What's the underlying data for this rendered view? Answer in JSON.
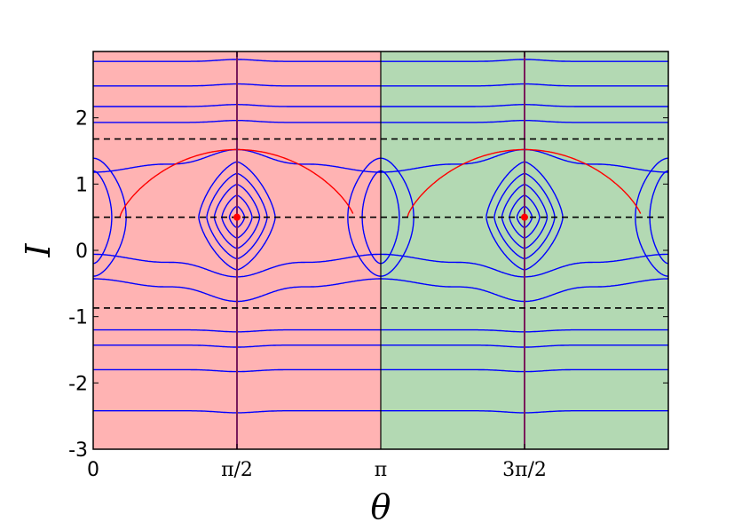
{
  "chart_data": {
    "type": "line",
    "title": "",
    "xlabel": "θ",
    "ylabel": "I",
    "xlim": [
      0,
      6.2832
    ],
    "ylim": [
      -3,
      3
    ],
    "x_ticks": [
      {
        "value": 0,
        "label": "0"
      },
      {
        "value": 1.5708,
        "label": "π/2"
      },
      {
        "value": 3.1416,
        "label": "π"
      },
      {
        "value": 4.7124,
        "label": "3π/2"
      }
    ],
    "y_ticks": [
      {
        "value": -3,
        "label": "-3"
      },
      {
        "value": -2,
        "label": "-2"
      },
      {
        "value": -1,
        "label": "-1"
      },
      {
        "value": 0,
        "label": "0"
      },
      {
        "value": 1,
        "label": "1"
      },
      {
        "value": 2,
        "label": "2"
      }
    ],
    "background_regions": [
      {
        "x_range": [
          0,
          3.1416
        ],
        "color": "#ffb3b3"
      },
      {
        "x_range": [
          3.1416,
          6.2832
        ],
        "color": "#b3d9b3"
      }
    ],
    "dashed_hlines": [
      1.68,
      0.5,
      -0.87
    ],
    "vertical_lines": [
      1.5708,
      4.7124
    ],
    "fixed_points": [
      {
        "theta": 1.5708,
        "I": 0.5
      },
      {
        "theta": 4.7124,
        "I": 0.5
      }
    ],
    "separatrix": {
      "I_center": 0.5,
      "I_top": 1.52,
      "I_bottom": -0.52,
      "theta_half_width": 1.28
    },
    "contour_levels": {
      "flat_above": [
        2.85,
        2.48,
        2.17,
        1.93
      ],
      "flat_below": [
        -1.2,
        -1.43,
        -1.8,
        -2.42
      ],
      "wavy_above": [
        1.3
      ],
      "wavy_below": [
        -0.18,
        -0.55
      ],
      "libration_widths": [
        0.15,
        0.3,
        0.45,
        0.6,
        0.76
      ],
      "edge_loops": [
        0.45,
        0.8
      ]
    },
    "colors": {
      "contour": "#0000ff",
      "separatrix": "#ff0000",
      "dashed": "#000000",
      "fixed_point": "#ff0000"
    },
    "grid": false,
    "legend": "none"
  }
}
